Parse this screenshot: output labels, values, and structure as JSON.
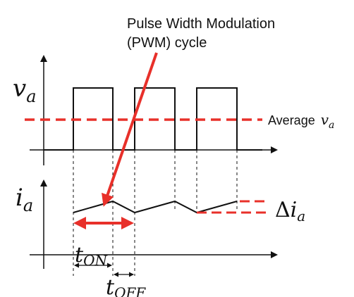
{
  "title_line1": "Pulse Width Modulation",
  "title_line2": "(PWM) cycle",
  "voltage_axis_label": {
    "symbol": "v",
    "subscript": "a"
  },
  "current_axis_label": {
    "symbol": "i",
    "subscript": "a"
  },
  "average_label": {
    "prefix": "Average",
    "symbol": "v",
    "subscript": "a"
  },
  "ripple_label": {
    "prefix": "Δ",
    "symbol": "i",
    "subscript": "a"
  },
  "t_on_label": {
    "symbol": "t",
    "subscript": "ON"
  },
  "t_off_label": {
    "symbol": "t",
    "subscript": "OFF"
  },
  "colors": {
    "accent_red": "#e8302a",
    "ink": "#111111"
  }
}
